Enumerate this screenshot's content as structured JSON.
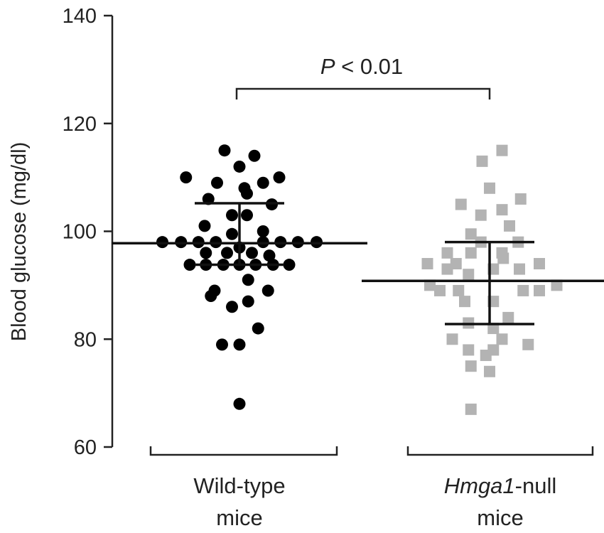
{
  "chart_data": {
    "type": "scatter",
    "ylabel": "Blood glucose (mg/dl)",
    "ylim": [
      60,
      140
    ],
    "yticks": [
      60,
      80,
      100,
      120,
      140
    ],
    "grid": false,
    "categories": [
      {
        "italic": "",
        "rest": "Wild-type",
        "line2": "mice"
      },
      {
        "italic": "Hmga1",
        "rest": "-null",
        "line2": "mice"
      }
    ],
    "annotation": {
      "italic": "P",
      "rest": " < 0.01"
    },
    "series": [
      {
        "marker": "circle",
        "color": "#000000",
        "mean": 97.8,
        "sd_upper": 105.2,
        "sd_lower": 93.8,
        "points": [
          {
            "v": 115.0,
            "o": -0.12
          },
          {
            "v": 114.0,
            "o": 0.12
          },
          {
            "v": 112.0,
            "o": 0.0
          },
          {
            "v": 110.0,
            "o": -0.43
          },
          {
            "v": 110.0,
            "o": 0.32
          },
          {
            "v": 109.0,
            "o": -0.18
          },
          {
            "v": 109.0,
            "o": 0.19
          },
          {
            "v": 108.0,
            "o": 0.04
          },
          {
            "v": 107.0,
            "o": 0.06
          },
          {
            "v": 106.0,
            "o": -0.25
          },
          {
            "v": 105.0,
            "o": 0.26
          },
          {
            "v": 103.0,
            "o": -0.06
          },
          {
            "v": 103.0,
            "o": 0.06
          },
          {
            "v": 101.0,
            "o": -0.28
          },
          {
            "v": 100.0,
            "o": 0.19
          },
          {
            "v": 99.5,
            "o": -0.06
          },
          {
            "v": 98.0,
            "o": -0.62
          },
          {
            "v": 98.0,
            "o": -0.47
          },
          {
            "v": 98.0,
            "o": -0.33
          },
          {
            "v": 98.0,
            "o": -0.19
          },
          {
            "v": 98.0,
            "o": 0.19
          },
          {
            "v": 98.0,
            "o": 0.33
          },
          {
            "v": 98.0,
            "o": 0.47
          },
          {
            "v": 98.0,
            "o": 0.62
          },
          {
            "v": 97.0,
            "o": 0.0
          },
          {
            "v": 96.0,
            "o": -0.27
          },
          {
            "v": 96.0,
            "o": -0.1
          },
          {
            "v": 96.0,
            "o": 0.1
          },
          {
            "v": 95.5,
            "o": 0.24
          },
          {
            "v": 93.8,
            "o": -0.4
          },
          {
            "v": 93.8,
            "o": -0.27
          },
          {
            "v": 93.8,
            "o": -0.13
          },
          {
            "v": 93.8,
            "o": 0.0
          },
          {
            "v": 93.8,
            "o": 0.13
          },
          {
            "v": 93.8,
            "o": 0.27
          },
          {
            "v": 93.8,
            "o": 0.4
          },
          {
            "v": 91.0,
            "o": 0.07
          },
          {
            "v": 89.0,
            "o": -0.2
          },
          {
            "v": 89.0,
            "o": 0.23
          },
          {
            "v": 88.0,
            "o": -0.23
          },
          {
            "v": 87.0,
            "o": 0.07
          },
          {
            "v": 86.0,
            "o": -0.06
          },
          {
            "v": 82.0,
            "o": 0.15
          },
          {
            "v": 79.0,
            "o": -0.14
          },
          {
            "v": 79.0,
            "o": 0.0
          },
          {
            "v": 68.0,
            "o": 0.0
          }
        ]
      },
      {
        "marker": "square",
        "color": "#b3b3b3",
        "mean": 90.8,
        "sd_upper": 98.0,
        "sd_lower": 82.8,
        "points": [
          {
            "v": 115.0,
            "o": 0.1
          },
          {
            "v": 113.0,
            "o": -0.06
          },
          {
            "v": 108.0,
            "o": 0.0
          },
          {
            "v": 106.0,
            "o": 0.25
          },
          {
            "v": 105.0,
            "o": -0.23
          },
          {
            "v": 104.0,
            "o": 0.1
          },
          {
            "v": 103.0,
            "o": -0.07
          },
          {
            "v": 101.0,
            "o": 0.16
          },
          {
            "v": 99.5,
            "o": -0.15
          },
          {
            "v": 98.0,
            "o": -0.07
          },
          {
            "v": 98.0,
            "o": 0.23
          },
          {
            "v": 96.0,
            "o": -0.34
          },
          {
            "v": 96.0,
            "o": -0.15
          },
          {
            "v": 96.0,
            "o": 0.1
          },
          {
            "v": 95.0,
            "o": 0.11
          },
          {
            "v": 94.0,
            "o": -0.5
          },
          {
            "v": 94.0,
            "o": -0.27
          },
          {
            "v": 94.0,
            "o": 0.4
          },
          {
            "v": 93.0,
            "o": -0.34
          },
          {
            "v": 93.0,
            "o": 0.03
          },
          {
            "v": 93.0,
            "o": 0.24
          },
          {
            "v": 92.0,
            "o": -0.17
          },
          {
            "v": 90.0,
            "o": -0.48
          },
          {
            "v": 90.0,
            "o": 0.54
          },
          {
            "v": 89.0,
            "o": -0.4
          },
          {
            "v": 89.0,
            "o": -0.25
          },
          {
            "v": 89.0,
            "o": 0.27
          },
          {
            "v": 89.0,
            "o": 0.4
          },
          {
            "v": 87.0,
            "o": -0.2
          },
          {
            "v": 87.0,
            "o": 0.03
          },
          {
            "v": 84.0,
            "o": 0.15
          },
          {
            "v": 83.0,
            "o": -0.17
          },
          {
            "v": 82.0,
            "o": 0.03
          },
          {
            "v": 80.0,
            "o": -0.3
          },
          {
            "v": 80.0,
            "o": 0.1
          },
          {
            "v": 79.0,
            "o": 0.31
          },
          {
            "v": 78.0,
            "o": -0.17
          },
          {
            "v": 78.0,
            "o": 0.03
          },
          {
            "v": 77.0,
            "o": -0.03
          },
          {
            "v": 75.0,
            "o": -0.15
          },
          {
            "v": 74.0,
            "o": 0.0
          },
          {
            "v": 67.0,
            "o": -0.15
          }
        ]
      }
    ]
  }
}
